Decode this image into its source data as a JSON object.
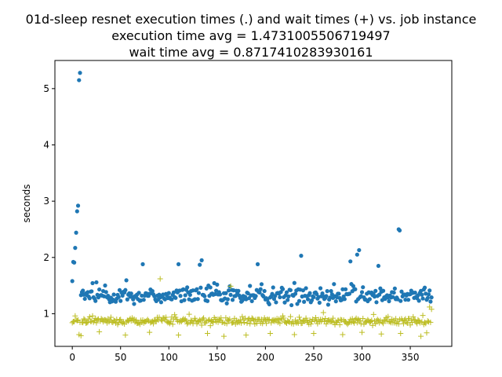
{
  "chart_data": {
    "type": "scatter",
    "title_lines": [
      "01d-sleep resnet execution times (.) and wait times (+) vs. job instance",
      "execution time avg = 1.4731005506719497",
      "wait time avg = 0.8717410283930161"
    ],
    "xlabel": "",
    "ylabel": "seconds",
    "xlim": [
      -18,
      393
    ],
    "ylim": [
      0.42,
      5.5
    ],
    "xticks": [
      0,
      50,
      100,
      150,
      200,
      250,
      300,
      350
    ],
    "yticks": [
      1,
      2,
      3,
      4,
      5
    ],
    "grid": false,
    "n_points": 373,
    "series": [
      {
        "marker": "dot",
        "color": "#1f77b4",
        "base": 1.32,
        "spread": 0.14,
        "highs": [
          [
            0,
            1.58
          ],
          [
            1,
            1.92
          ],
          [
            2,
            1.91
          ],
          [
            3,
            2.17
          ],
          [
            4,
            2.44
          ],
          [
            5,
            2.82
          ],
          [
            6,
            2.92
          ],
          [
            7,
            5.15
          ],
          [
            8,
            5.28
          ],
          [
            338,
            2.5
          ],
          [
            339,
            2.48
          ],
          [
            237,
            2.03
          ],
          [
            297,
            2.13
          ],
          [
            295,
            2.05
          ],
          [
            134,
            1.95
          ],
          [
            192,
            1.88
          ],
          [
            132,
            1.87
          ],
          [
            73,
            1.88
          ],
          [
            110,
            1.88
          ],
          [
            317,
            1.85
          ],
          [
            288,
            1.93
          ]
        ]
      },
      {
        "marker": "plus",
        "color": "#bcbd22",
        "base": 0.87,
        "spread": 0.07,
        "highs": [
          [
            0,
            0.84
          ],
          [
            1,
            0.86
          ],
          [
            3,
            0.96
          ],
          [
            91,
            1.62
          ],
          [
            164,
            1.49
          ],
          [
            260,
            1.02
          ],
          [
            372,
            1.08
          ],
          [
            370,
            1.12
          ]
        ],
        "lows": [
          [
            7,
            0.63
          ],
          [
            9,
            0.61
          ],
          [
            28,
            0.68
          ],
          [
            55,
            0.62
          ],
          [
            80,
            0.67
          ],
          [
            110,
            0.62
          ],
          [
            140,
            0.65
          ],
          [
            157,
            0.6
          ],
          [
            180,
            0.62
          ],
          [
            205,
            0.65
          ],
          [
            230,
            0.63
          ],
          [
            250,
            0.65
          ],
          [
            280,
            0.63
          ],
          [
            300,
            0.67
          ],
          [
            320,
            0.64
          ],
          [
            340,
            0.65
          ],
          [
            361,
            0.6
          ],
          [
            367,
            0.66
          ]
        ]
      }
    ]
  }
}
